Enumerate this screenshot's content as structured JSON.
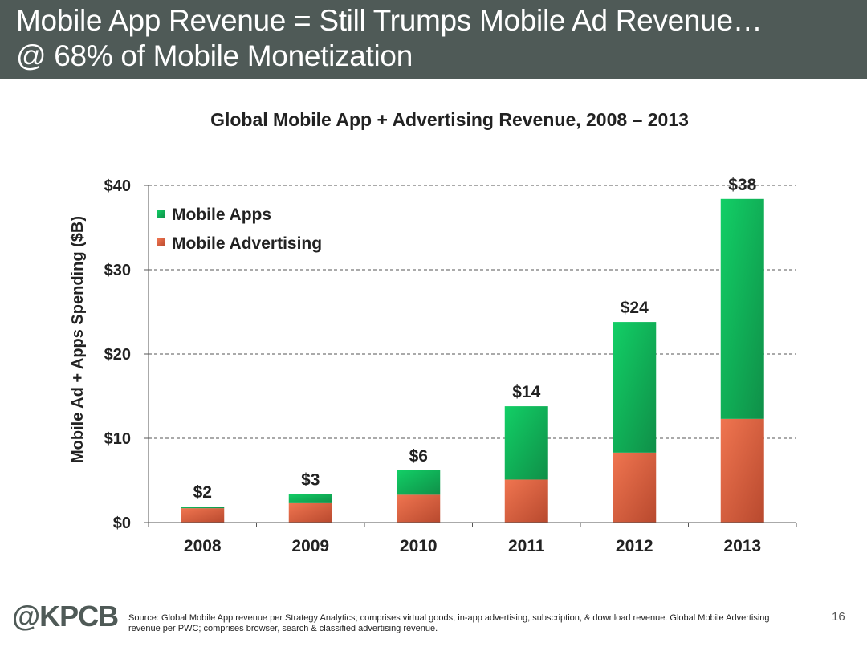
{
  "header": {
    "title_line1": "Mobile App Revenue = Still Trumps Mobile Ad Revenue…",
    "title_line2": "@ 68% of Mobile Monetization"
  },
  "chart_data": {
    "type": "bar",
    "stacked": true,
    "title": "Global Mobile App + Advertising Revenue, 2008 – 2013",
    "ylabel": "Mobile Ad + Apps Spending ($B)",
    "xlabel": "",
    "categories": [
      "2008",
      "2009",
      "2010",
      "2011",
      "2012",
      "2013"
    ],
    "series": [
      {
        "name": "Mobile Advertising",
        "values": [
          1.7,
          2.3,
          3.3,
          5.1,
          8.3,
          12.3
        ],
        "color": "#e8684a"
      },
      {
        "name": "Mobile Apps",
        "values": [
          0.2,
          1.1,
          2.9,
          8.7,
          15.5,
          26.1
        ],
        "color": "#1fbf62"
      }
    ],
    "totals_labels": [
      "$2",
      "$3",
      "$6",
      "$14",
      "$24",
      "$38"
    ],
    "ylim": [
      0,
      40
    ],
    "yticks": [
      0,
      10,
      20,
      30,
      40
    ],
    "ytick_labels": [
      "$0",
      "$10",
      "$20",
      "$30",
      "$40"
    ],
    "grid": true,
    "legend_position": "top-left",
    "legend": [
      "Mobile Apps",
      "Mobile Advertising"
    ]
  },
  "footer": {
    "logo": "@KPCB",
    "source": "Source: Global Mobile App revenue per Strategy Analytics; comprises virtual goods, in-app advertising, subscription, & download revenue. Global Mobile Advertising revenue per PWC; comprises browser, search & classified advertising revenue.",
    "page_number": "16"
  }
}
